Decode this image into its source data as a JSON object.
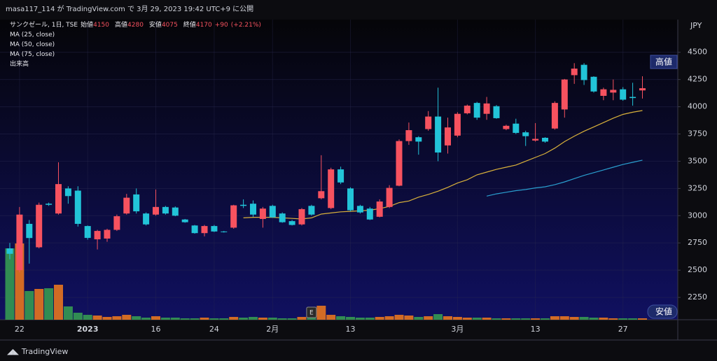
{
  "header": {
    "publisher": "masa117_114 が TradingView.com で 3月 29, 2023 19:42 UTC+9 に公開"
  },
  "footer": {
    "brand": "TradingView"
  },
  "chart_data": {
    "type": "candlestick",
    "title": "サンクゼール, 1日, TSE",
    "ohlc_labels": [
      "始値",
      "高値",
      "安値",
      "終値"
    ],
    "change": "+90",
    "change_pct": "(+2.21%)",
    "currency": "JPY",
    "high_marker": "高値",
    "low_marker": "安値",
    "event_marker": "E",
    "categories": [
      null,
      "22",
      null,
      null,
      null,
      null,
      null,
      null,
      "2023",
      null,
      null,
      null,
      null,
      null,
      null,
      "16",
      null,
      null,
      null,
      null,
      null,
      "24",
      null,
      null,
      null,
      null,
      null,
      "2月",
      null,
      null,
      null,
      null,
      null,
      null,
      null,
      "13",
      null,
      null,
      null,
      null,
      null,
      null,
      null,
      null,
      null,
      null,
      "3月",
      null,
      null,
      null,
      null,
      null,
      null,
      null,
      "13",
      null,
      null,
      null,
      null,
      null,
      null,
      null,
      null,
      "27",
      null,
      null
    ],
    "open": [
      2700,
      2500,
      2925,
      2710,
      3110,
      3020,
      3250,
      3230,
      2905,
      2783,
      2790,
      2870,
      3020,
      3195,
      3020,
      3010,
      3080,
      3075,
      2965,
      2910,
      2840,
      2905,
      2855,
      2890,
      3100,
      3110,
      2970,
      3090,
      3020,
      2950,
      2920,
      3090,
      3160,
      3070,
      3425,
      3250,
      3090,
      3065,
      2990,
      3080,
      3275,
      3685,
      3720,
      3795,
      3910,
      3645,
      3735,
      3940,
      4035,
      3935,
      4005,
      3795,
      3845,
      3765,
      3690,
      3715,
      3800,
      3975,
      4290,
      4385,
      4275,
      4100,
      4130,
      4160,
      4090,
      4150
    ],
    "high": [
      2750,
      3080,
      2960,
      3120,
      3120,
      3490,
      3270,
      3270,
      2910,
      2870,
      2880,
      3010,
      3200,
      3250,
      3030,
      3240,
      3090,
      3085,
      2970,
      2915,
      2915,
      2915,
      2860,
      3100,
      3150,
      3140,
      3080,
      3100,
      3030,
      2960,
      3070,
      3100,
      3555,
      3440,
      3450,
      3260,
      3100,
      3080,
      3150,
      3280,
      3700,
      3855,
      3730,
      3960,
      4175,
      3900,
      3950,
      4020,
      4045,
      4090,
      4015,
      3835,
      3890,
      3780,
      3850,
      3720,
      4050,
      4255,
      4400,
      4400,
      4280,
      4175,
      4250,
      4180,
      4220,
      4280
    ],
    "low": [
      2600,
      2480,
      2560,
      2700,
      3090,
      3010,
      3110,
      2900,
      2780,
      2690,
      2760,
      2860,
      3010,
      3020,
      2910,
      3000,
      3010,
      2995,
      2935,
      2835,
      2810,
      2850,
      2845,
      2880,
      3070,
      2990,
      2890,
      2980,
      2935,
      2910,
      2910,
      3000,
      3150,
      3060,
      3290,
      3040,
      3020,
      2960,
      2985,
      3070,
      3270,
      3650,
      3560,
      3780,
      3500,
      3570,
      3720,
      3930,
      3880,
      3880,
      3890,
      3785,
      3750,
      3640,
      3680,
      3670,
      3790,
      3900,
      4210,
      4200,
      4130,
      4060,
      4060,
      4055,
      4010,
      4075
    ],
    "close": [
      2650,
      3010,
      2795,
      3100,
      3100,
      3290,
      3180,
      2925,
      2796,
      2860,
      2870,
      2995,
      3165,
      3040,
      2920,
      3080,
      3020,
      3000,
      2940,
      2840,
      2905,
      2855,
      2850,
      3095,
      3090,
      3010,
      3065,
      2985,
      2940,
      2915,
      3060,
      3010,
      3225,
      3425,
      3305,
      3050,
      3030,
      2965,
      3130,
      3255,
      3685,
      3785,
      3680,
      3910,
      3580,
      3810,
      3935,
      4010,
      3900,
      4030,
      3895,
      3825,
      3760,
      3730,
      3705,
      3680,
      4035,
      4250,
      4350,
      4245,
      4140,
      4160,
      4155,
      4065,
      4080,
      4170
    ],
    "up_color": "#f7525f",
    "down_color": "#22c4d8",
    "volume": {
      "name": "出来高",
      "up_color": "#e8761f",
      "down_color": "#359a52",
      "values": [
        1020000,
        1090000,
        410000,
        440000,
        450000,
        500000,
        190000,
        100000,
        70000,
        60000,
        40000,
        50000,
        70000,
        50000,
        30000,
        50000,
        30000,
        30000,
        20000,
        20000,
        30000,
        20000,
        20000,
        40000,
        30000,
        40000,
        30000,
        30000,
        20000,
        20000,
        40000,
        160000,
        200000,
        70000,
        50000,
        40000,
        30000,
        30000,
        40000,
        50000,
        70000,
        60000,
        40000,
        50000,
        80000,
        50000,
        40000,
        30000,
        30000,
        30000,
        20000,
        20000,
        20000,
        20000,
        20000,
        20000,
        50000,
        50000,
        40000,
        40000,
        30000,
        30000,
        20000,
        20000,
        20000,
        20000
      ]
    },
    "indicators": [
      {
        "name": "MA (25, close)",
        "color": "#d9b13b",
        "values": [
          null,
          null,
          null,
          null,
          null,
          null,
          null,
          null,
          null,
          null,
          null,
          null,
          null,
          null,
          null,
          null,
          null,
          null,
          null,
          null,
          null,
          null,
          null,
          null,
          2980,
          2985,
          2985,
          2985,
          2980,
          2975,
          2970,
          2980,
          3015,
          3025,
          3035,
          3040,
          3045,
          3050,
          3065,
          3085,
          3120,
          3135,
          3170,
          3195,
          3225,
          3260,
          3300,
          3330,
          3375,
          3400,
          3425,
          3445,
          3465,
          3500,
          3535,
          3570,
          3620,
          3680,
          3730,
          3775,
          3815,
          3855,
          3895,
          3930,
          3950,
          3965
        ]
      },
      {
        "name": "MA (50, close)",
        "color": "#2a9fd0",
        "values": [
          null,
          null,
          null,
          null,
          null,
          null,
          null,
          null,
          null,
          null,
          null,
          null,
          null,
          null,
          null,
          null,
          null,
          null,
          null,
          null,
          null,
          null,
          null,
          null,
          null,
          null,
          null,
          null,
          null,
          null,
          null,
          null,
          null,
          null,
          null,
          null,
          null,
          null,
          null,
          null,
          null,
          null,
          null,
          null,
          null,
          null,
          null,
          null,
          null,
          3180,
          3200,
          3215,
          3230,
          3240,
          3255,
          3265,
          3285,
          3310,
          3340,
          3370,
          3395,
          3420,
          3445,
          3470,
          3490,
          3510
        ]
      },
      {
        "name": "MA (75, close)"
      }
    ],
    "ylim": [
      2045,
      4800
    ],
    "yticks": [
      2250,
      2500,
      2750,
      3000,
      3250,
      3500,
      3750,
      4000,
      4250,
      4500
    ],
    "grid": true
  }
}
